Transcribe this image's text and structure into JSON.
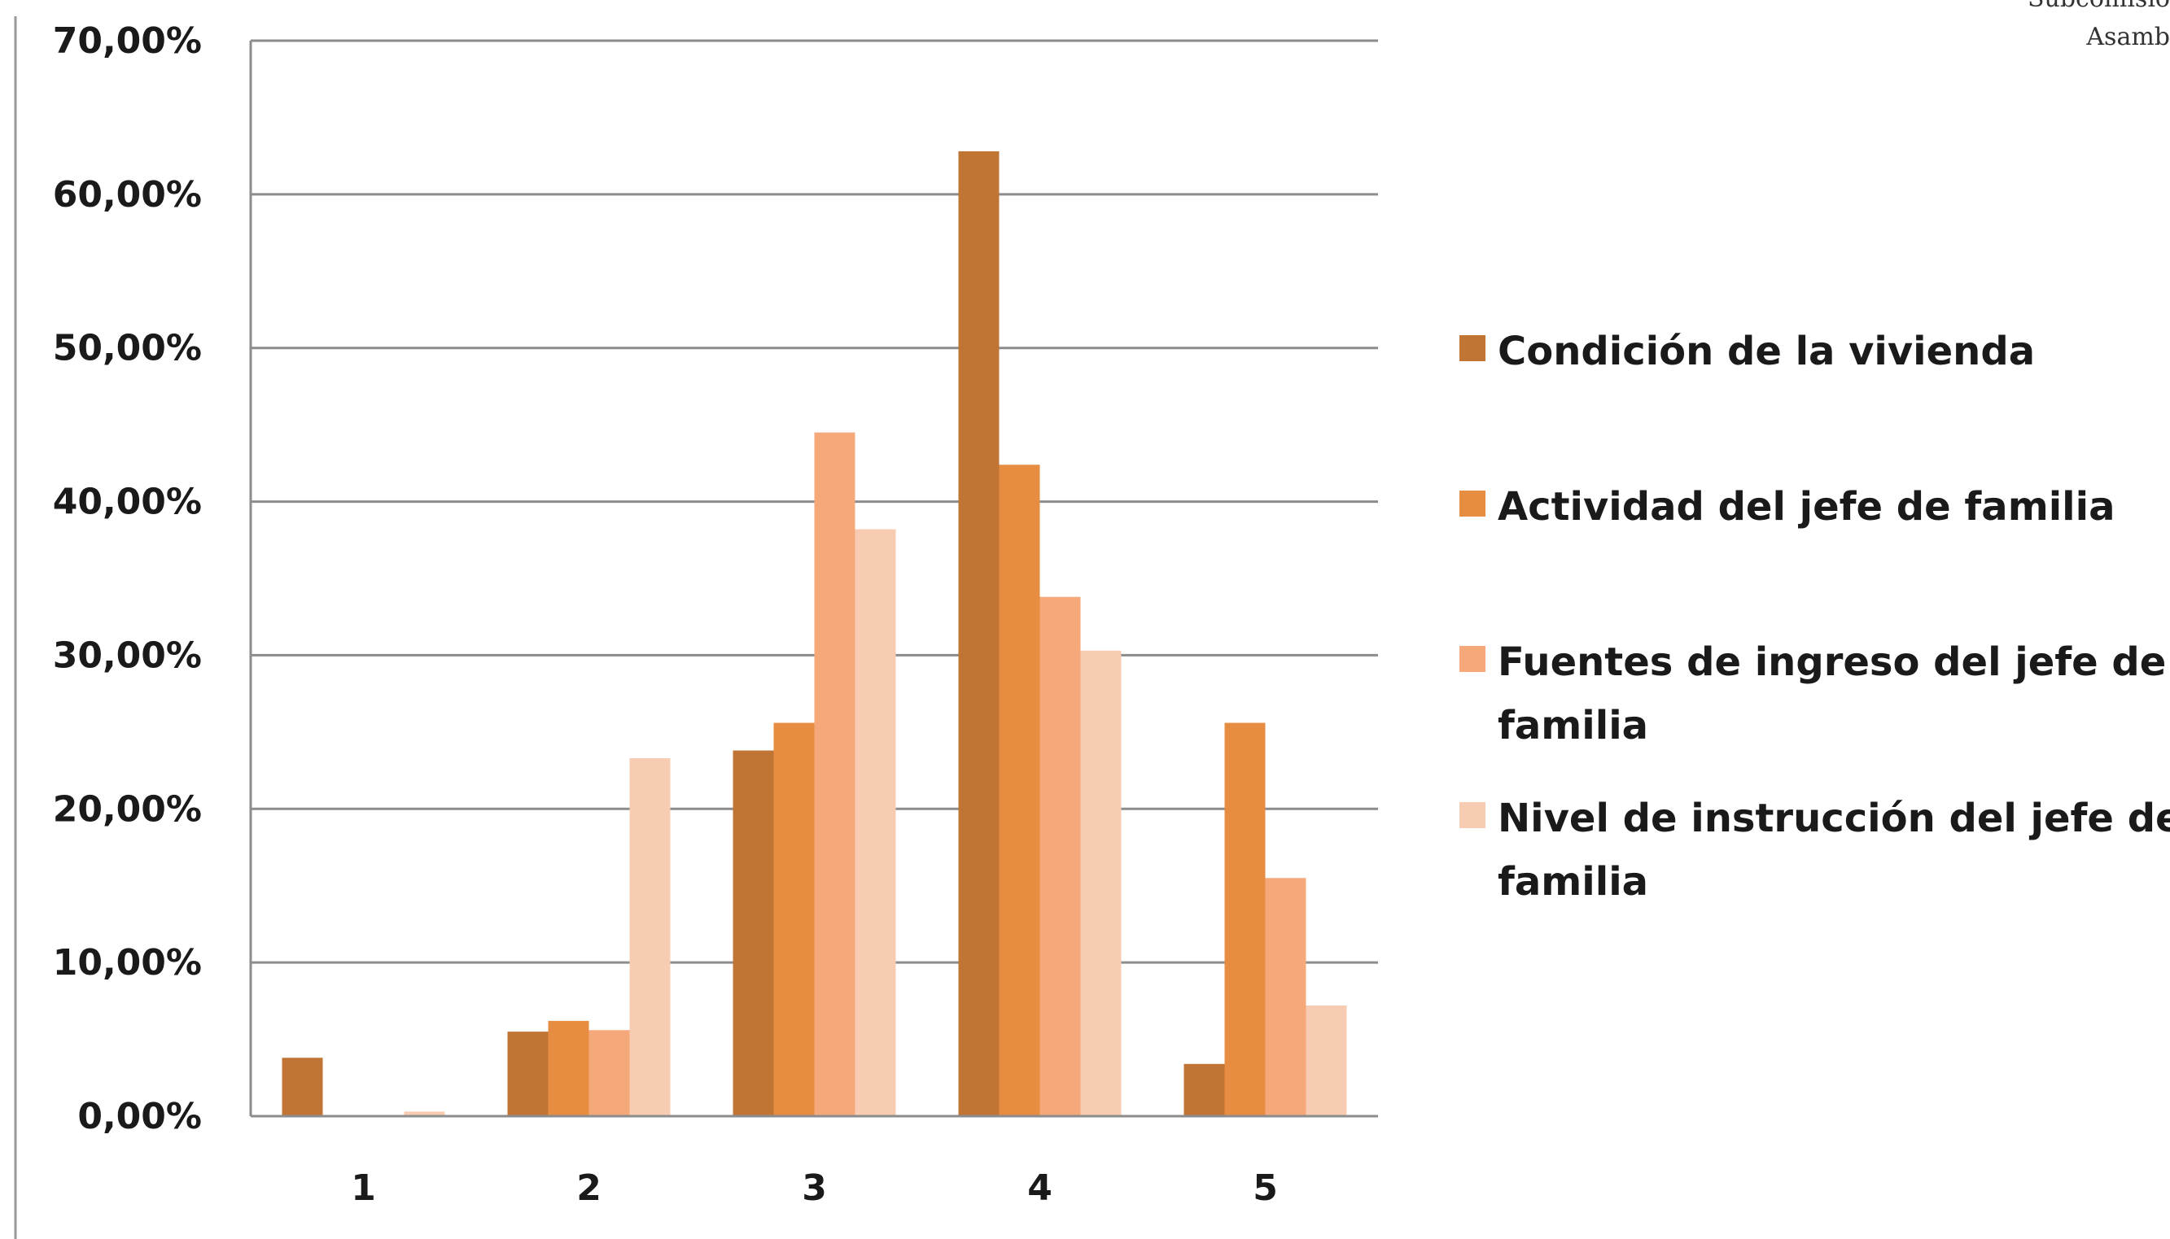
{
  "corner_text": [
    "Subcomisió",
    "Asamb"
  ],
  "colors": {
    "gridline": "#8c8c8c",
    "axis": "#8c8c8c",
    "left_rule": "#9a9a9a"
  },
  "chart_data": {
    "type": "bar",
    "title": "",
    "xlabel": "",
    "ylabel": "",
    "categories": [
      "1",
      "2",
      "3",
      "4",
      "5"
    ],
    "y_ticks": [
      "0,00%",
      "10,00%",
      "20,00%",
      "30,00%",
      "40,00%",
      "50,00%",
      "60,00%",
      "70,00%"
    ],
    "ylim": [
      0,
      70
    ],
    "grid": true,
    "legend_position": "right",
    "series": [
      {
        "name": "Condición de la vivienda",
        "legend_lines": [
          "Condición de la vivienda"
        ],
        "color": "#c07534",
        "values": [
          3.8,
          5.5,
          23.8,
          62.8,
          3.4
        ]
      },
      {
        "name": "Actividad del jefe de familia",
        "legend_lines": [
          "Actividad del jefe de familia"
        ],
        "color": "#e68d42",
        "values": [
          0,
          6.2,
          25.6,
          42.4,
          25.6
        ]
      },
      {
        "name": "Fuentes de ingreso del jefe de familia",
        "legend_lines": [
          "Fuentes de ingreso del jefe de",
          "familia"
        ],
        "color": "#f5a87a",
        "values": [
          0,
          5.6,
          44.5,
          33.8,
          15.5
        ]
      },
      {
        "name": "Nivel de instrucción del jefe de familia",
        "legend_lines": [
          "Nivel de instrucción del jefe de",
          "familia"
        ],
        "color": "#f8cbb3",
        "values": [
          0.3,
          23.3,
          38.2,
          30.3,
          7.2
        ]
      }
    ]
  }
}
